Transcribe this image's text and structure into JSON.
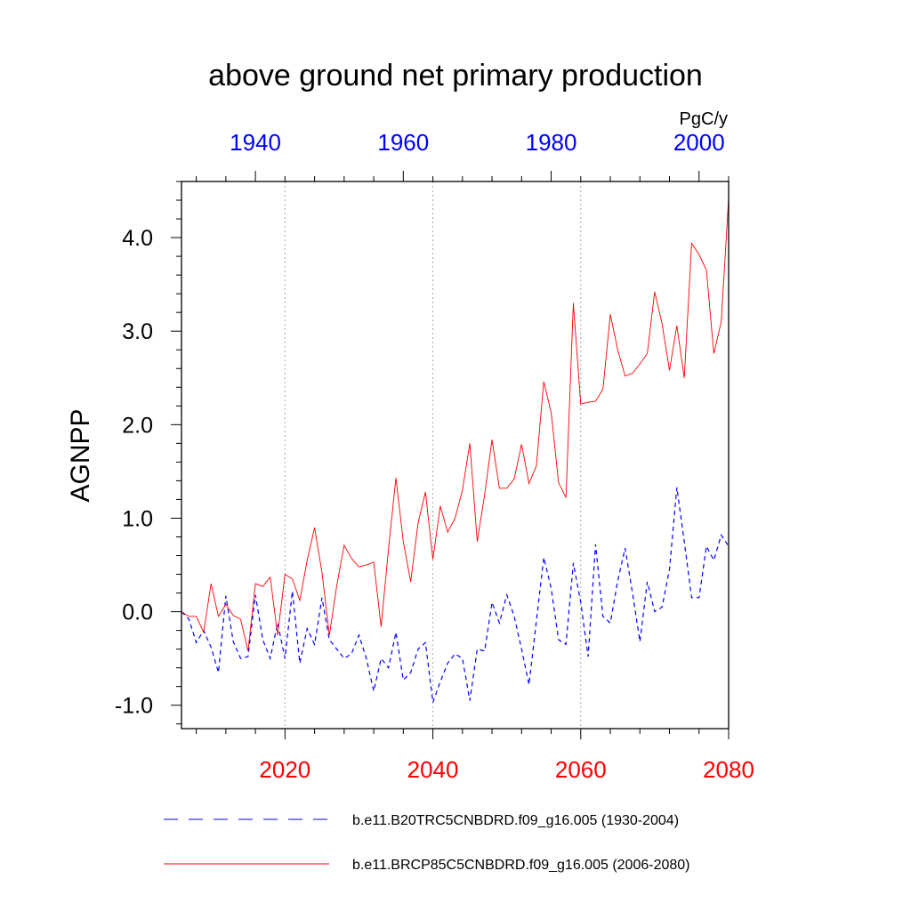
{
  "chart_data": {
    "type": "line",
    "title": "above ground net primary production",
    "ylabel": "AGNPP",
    "units": "PgC/y",
    "ylim": [
      -1.25,
      4.6
    ],
    "yticks": [
      -1.0,
      0.0,
      1.0,
      2.0,
      3.0,
      4.0
    ],
    "ytick_labels": [
      "-1.0",
      "0.0",
      "1.0",
      "2.0",
      "3.0",
      "4.0"
    ],
    "bottom_axis": {
      "xlim": [
        2006,
        2080
      ],
      "ticks": [
        2020,
        2040,
        2060,
        2080
      ],
      "tick_labels": [
        "2020",
        "2040",
        "2060",
        "2080"
      ],
      "color": "#ff0000"
    },
    "top_axis": {
      "xlim": [
        1930,
        2004
      ],
      "ticks": [
        1940,
        1960,
        1980,
        2000
      ],
      "tick_labels": [
        "1940",
        "1960",
        "1980",
        "2000"
      ],
      "color": "#0000ff"
    },
    "vertical_gridlines": [
      2020,
      2040,
      2060
    ],
    "series": [
      {
        "name": "b.e11.B20TRC5CNBDRD.f09_g16.005 (1930-2004)",
        "axis": "top",
        "color": "#0000ff",
        "dash": "dashed",
        "start": 1930,
        "values": [
          0.0,
          -0.08,
          -0.33,
          -0.2,
          -0.38,
          -0.65,
          0.17,
          -0.32,
          -0.5,
          -0.48,
          0.18,
          -0.3,
          -0.5,
          -0.12,
          -0.5,
          0.22,
          -0.55,
          -0.18,
          -0.35,
          0.15,
          -0.3,
          -0.4,
          -0.5,
          -0.45,
          -0.25,
          -0.5,
          -0.85,
          -0.5,
          -0.6,
          -0.22,
          -0.73,
          -0.65,
          -0.4,
          -0.33,
          -0.97,
          -0.75,
          -0.55,
          -0.45,
          -0.5,
          -0.95,
          -0.4,
          -0.42,
          0.1,
          -0.12,
          0.18,
          -0.05,
          -0.4,
          -0.78,
          -0.1,
          0.58,
          0.25,
          -0.3,
          -0.35,
          0.52,
          0.1,
          -0.48,
          0.72,
          -0.05,
          -0.12,
          0.33,
          0.68,
          0.2,
          -0.32,
          0.32,
          0.0,
          0.05,
          0.45,
          1.33,
          0.75,
          0.15,
          0.15,
          0.7,
          0.55,
          0.82,
          0.7
        ]
      },
      {
        "name": "b.e11.BRCP85C5CNBDRD.f09_g16.005 (2006-2080)",
        "axis": "bottom",
        "color": "#ff0000",
        "dash": "solid",
        "start": 2006,
        "values": [
          0.0,
          -0.05,
          -0.05,
          -0.22,
          0.3,
          -0.05,
          0.08,
          -0.04,
          -0.08,
          -0.42,
          0.3,
          0.27,
          0.37,
          -0.25,
          0.4,
          0.35,
          0.12,
          0.55,
          0.9,
          0.42,
          -0.25,
          0.28,
          0.71,
          0.57,
          0.48,
          0.5,
          0.53,
          -0.16,
          0.67,
          1.43,
          0.75,
          0.32,
          0.95,
          1.28,
          0.56,
          1.13,
          0.85,
          1.0,
          1.3,
          1.8,
          0.75,
          1.25,
          1.84,
          1.32,
          1.32,
          1.42,
          1.79,
          1.37,
          1.56,
          2.46,
          2.13,
          1.38,
          1.22,
          3.3,
          2.22,
          2.24,
          2.25,
          2.38,
          3.18,
          2.8,
          2.52,
          2.55,
          2.65,
          2.76,
          3.42,
          3.08,
          2.58,
          3.06,
          2.5,
          3.94,
          3.82,
          3.65,
          2.76,
          3.1,
          4.42
        ]
      }
    ],
    "legend_position": "bottom-center"
  }
}
